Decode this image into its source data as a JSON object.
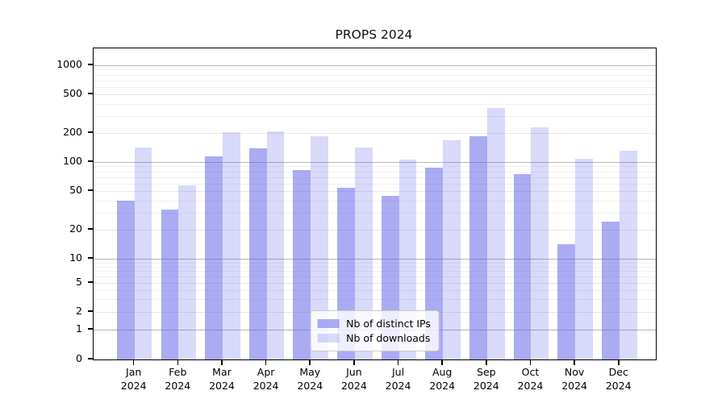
{
  "chart_data": {
    "type": "bar",
    "title": "PROPS 2024",
    "categories": [
      "Jan",
      "Feb",
      "Mar",
      "Apr",
      "May",
      "Jun",
      "Jul",
      "Aug",
      "Sep",
      "Oct",
      "Nov",
      "Dec"
    ],
    "category_year": "2024",
    "series": [
      {
        "name": "Nb of distinct IPs",
        "color": "#a7a7f0",
        "base_color": "#6666eb",
        "alpha": 0.55,
        "values": [
          40,
          32,
          114,
          139,
          83,
          54,
          45,
          87,
          185,
          75,
          14,
          24
        ]
      },
      {
        "name": "Nb of downloads",
        "color": "#d9d9f7",
        "base_color": "#6666eb",
        "alpha": 0.25,
        "values": [
          141,
          57,
          205,
          209,
          185,
          141,
          105,
          168,
          365,
          227,
          109,
          132
        ]
      }
    ],
    "xlabel": "",
    "ylabel": "",
    "yscale": "symlog",
    "y_ticks": [
      0,
      1,
      2,
      5,
      10,
      20,
      50,
      100,
      200,
      500,
      1000
    ],
    "ylim": [
      0,
      1500
    ],
    "grid": "both",
    "legend_position": "lower center"
  }
}
